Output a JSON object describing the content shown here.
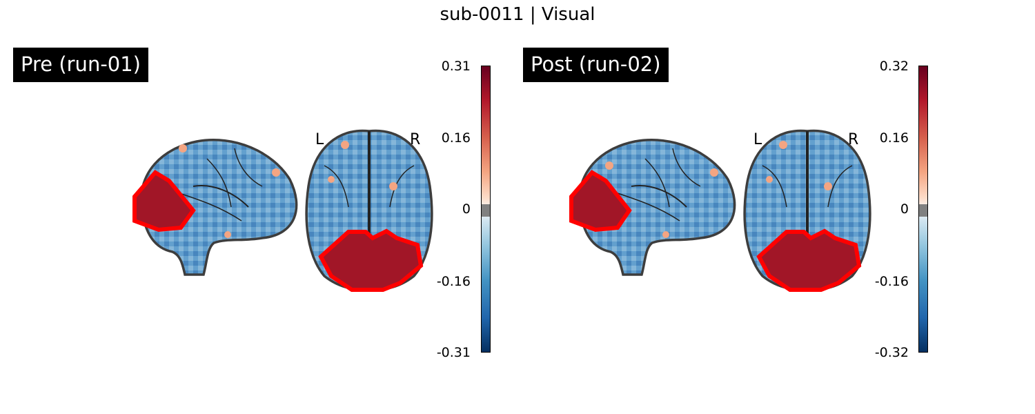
{
  "figure": {
    "title": "sub-0011 | Visual"
  },
  "panels": [
    {
      "label": "Pre (run-01)",
      "side_left": "L",
      "side_right": "R",
      "colorbar": {
        "ticks": [
          "0.31",
          "0.16",
          "0",
          "-0.16",
          "-0.31"
        ],
        "max": 0.31,
        "min": -0.31
      }
    },
    {
      "label": "Post (run-02)",
      "side_left": "L",
      "side_right": "R",
      "colorbar": {
        "ticks": [
          "0.32",
          "0.16",
          "0",
          "-0.16",
          "-0.32"
        ],
        "max": 0.32,
        "min": -0.32
      }
    }
  ],
  "colors": {
    "roi_outline": "#ff0000",
    "colormap": "RdBu_r",
    "zero_band": "#808080"
  }
}
